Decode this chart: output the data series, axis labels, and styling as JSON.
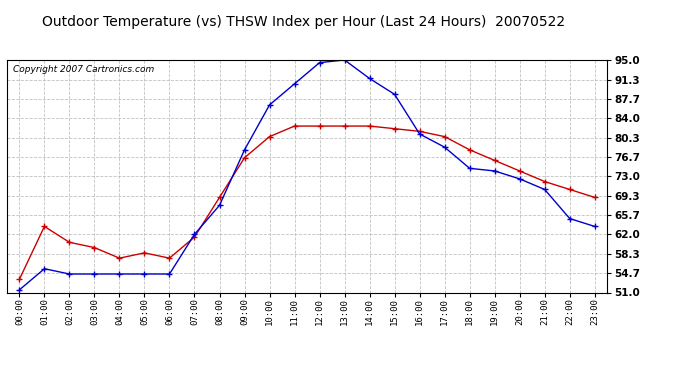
{
  "title": "Outdoor Temperature (vs) THSW Index per Hour (Last 24 Hours)  20070522",
  "copyright": "Copyright 2007 Cartronics.com",
  "hours": [
    "00:00",
    "01:00",
    "02:00",
    "03:00",
    "04:00",
    "05:00",
    "06:00",
    "07:00",
    "08:00",
    "09:00",
    "10:00",
    "11:00",
    "12:00",
    "13:00",
    "14:00",
    "15:00",
    "16:00",
    "17:00",
    "18:00",
    "19:00",
    "20:00",
    "21:00",
    "22:00",
    "23:00"
  ],
  "temp_red": [
    53.5,
    63.5,
    60.5,
    59.5,
    57.5,
    58.5,
    57.5,
    61.5,
    69.0,
    76.5,
    80.5,
    82.5,
    82.5,
    82.5,
    82.5,
    82.0,
    81.5,
    80.5,
    78.0,
    76.0,
    74.0,
    72.0,
    70.5,
    69.0
  ],
  "thsw_blue": [
    51.5,
    55.5,
    54.5,
    54.5,
    54.5,
    54.5,
    54.5,
    62.0,
    67.5,
    78.0,
    86.5,
    90.5,
    94.5,
    95.0,
    91.5,
    88.5,
    81.0,
    78.5,
    74.5,
    74.0,
    72.5,
    70.5,
    65.0,
    63.5
  ],
  "ylim": [
    51.0,
    95.0
  ],
  "yticks": [
    51.0,
    54.7,
    58.3,
    62.0,
    65.7,
    69.3,
    73.0,
    76.7,
    80.3,
    84.0,
    87.7,
    91.3,
    95.0
  ],
  "bg_color": "#ffffff",
  "grid_color": "#bbbbbb",
  "red_color": "#cc0000",
  "blue_color": "#0000cc",
  "title_fontsize": 10,
  "copyright_fontsize": 6.5
}
